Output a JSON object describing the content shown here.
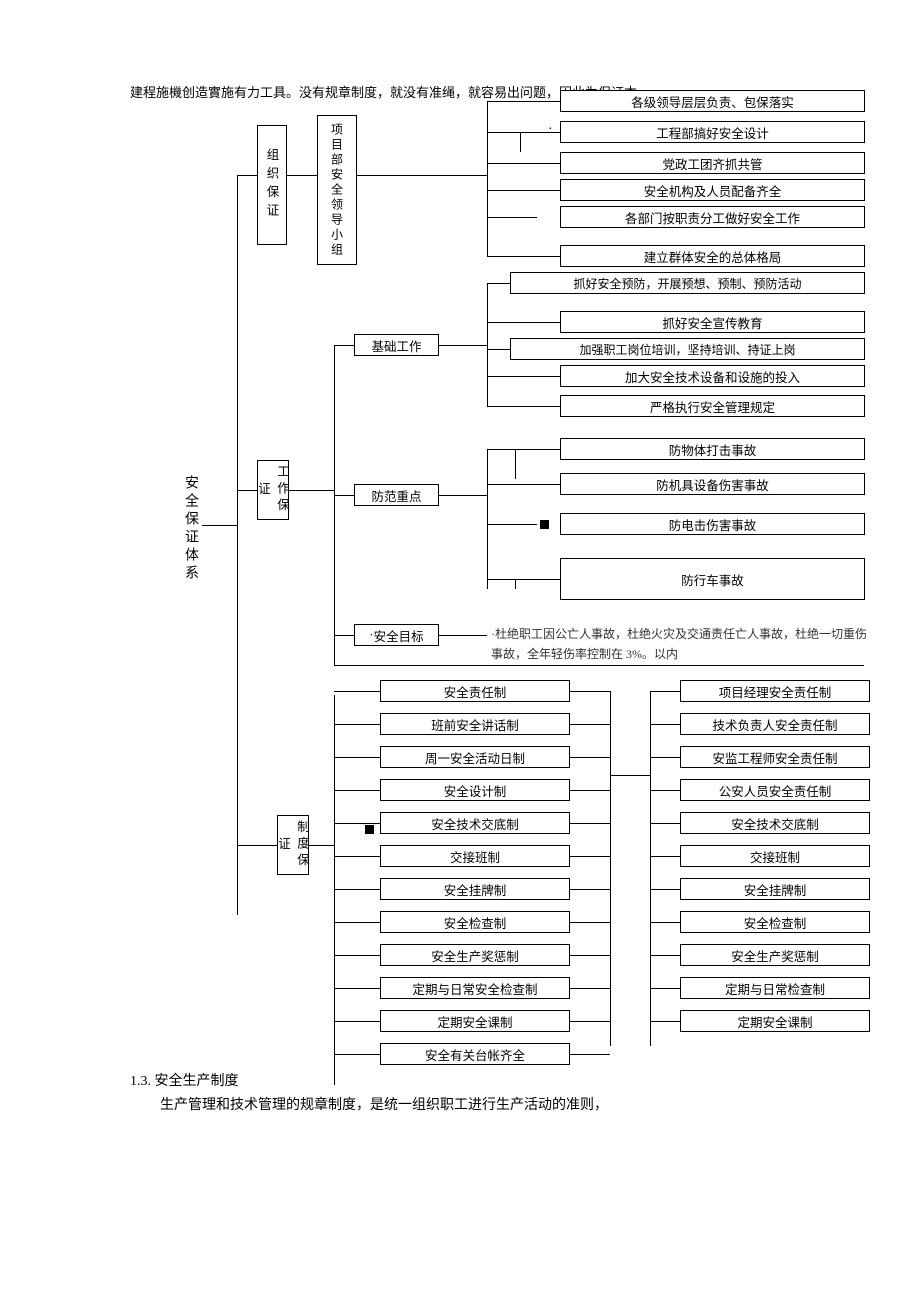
{
  "intro": "建程施機创造實施有力工具。没有规章制度，就没有准绳，就容易出问题，因此为保证本",
  "root": "安全保证体系",
  "branches": {
    "org": {
      "label": "组织保证",
      "mid": "项目部安全领导小组",
      "leaves": [
        "各级领导层层负责、包保落实",
        "工程部搞好安全设计",
        "党政工团齐抓共管",
        "安全机构及人员配备齐全",
        "各部门按职责分工做好安全工作",
        "建立群体安全的总体格局"
      ]
    },
    "work": {
      "label": "工作保证",
      "sub": {
        "base": {
          "label": "基础工作",
          "leaves": [
            "抓好安全预防，开展预想、预制、预防活动",
            "抓好安全宣传教育",
            "加强职工岗位培训，坚持培训、持证上岗",
            "加大安全技术设备和设施的投入",
            "严格执行安全管理规定"
          ]
        },
        "prevent": {
          "label": "防范重点",
          "leaves": [
            "防物体打击事故",
            "防机具设备伤害事故",
            "防电击伤害事故",
            "防行车事故"
          ]
        },
        "target": {
          "label": "安全目标",
          "text": "杜绝职工因公亡人事故，杜绝火灾及交通责任亡人事故，杜绝一切重伤事故，全年轻伤率控制在 3%。以内"
        }
      }
    },
    "sys": {
      "label": "制度保证",
      "left": [
        "安全责任制",
        "班前安全讲话制",
        "周一安全活动日制",
        "安全设计制",
        "安全技术交底制",
        "交接班制",
        "安全挂牌制",
        "安全检查制",
        "安全生产奖惩制",
        "定期与日常安全检查制",
        "定期安全课制",
        "安全有关台帐齐全"
      ],
      "right": [
        "项目经理安全责任制",
        "技术负责人安全责任制",
        "安监工程师安全责任制",
        "公安人员安全责任制",
        "安全技术交底制",
        "交接班制",
        "安全挂牌制",
        "安全检查制",
        "安全生产奖惩制",
        "定期与日常检查制",
        "定期安全课制"
      ]
    }
  },
  "section": {
    "num": "1.3.",
    "title": "安全生产制度",
    "body": "生产管理和技术管理的规章制度，是统一组织职工进行生产活动的准则，"
  },
  "colors": {
    "fg": "#000000",
    "bg": "#ffffff"
  },
  "font": {
    "body_pt": 13,
    "label_pt": 14
  }
}
